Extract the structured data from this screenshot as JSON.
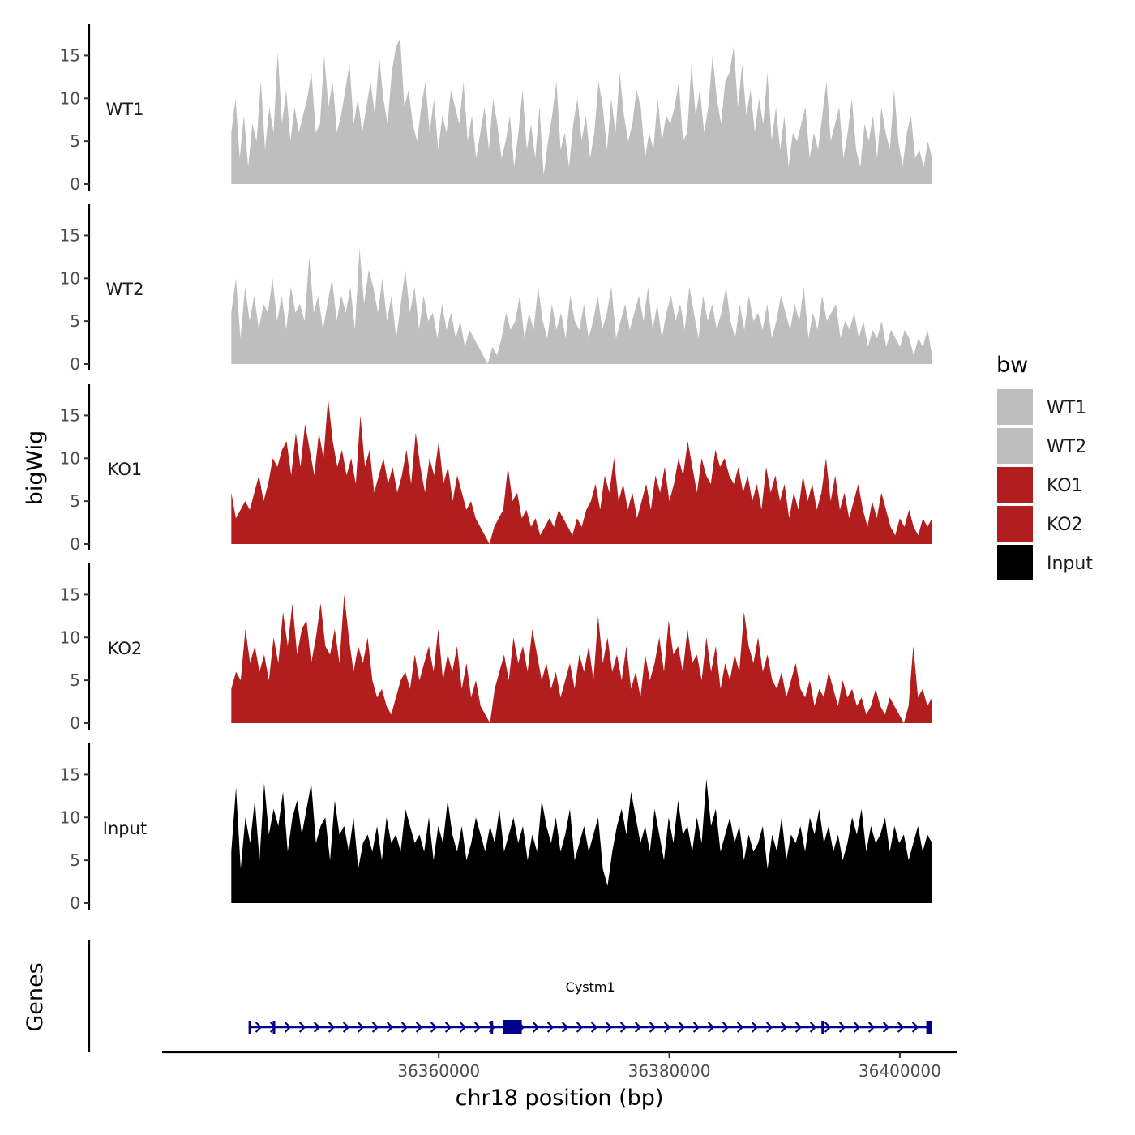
{
  "chart_data": {
    "type": "area",
    "chromosome": "chr18",
    "ylabel": "bigWig",
    "xlabel": "chr18 position (bp)",
    "x_range": [
      36342000,
      36402800
    ],
    "x_axis_range": [
      36336000,
      36405000
    ],
    "x_ticks": [
      36360000,
      36380000,
      36400000
    ],
    "x_tick_labels": [
      "36360000",
      "36380000",
      "36400000"
    ],
    "y_range": [
      0,
      17.5
    ],
    "y_ticks": [
      0,
      5,
      10,
      15
    ],
    "y_tick_labels": [
      "0",
      "5",
      "10",
      "15"
    ],
    "legend": {
      "title": "bw",
      "entries": [
        {
          "label": "WT1",
          "color": "#bebebe"
        },
        {
          "label": "WT2",
          "color": "#bebebe"
        },
        {
          "label": "KO1",
          "color": "#b21e1e"
        },
        {
          "label": "KO2",
          "color": "#b21e1e"
        },
        {
          "label": "Input",
          "color": "#000000"
        }
      ]
    },
    "series": [
      {
        "name": "WT1",
        "color": "#bebebe",
        "values": [
          6,
          10,
          3,
          8,
          2,
          7,
          5,
          12,
          4,
          9,
          6,
          15.5,
          7,
          11,
          5,
          9,
          6,
          8,
          10,
          13,
          6,
          7,
          15,
          9,
          12,
          6,
          8,
          11,
          14,
          7,
          10,
          6,
          9,
          12,
          8,
          15,
          10,
          7,
          13,
          16,
          17,
          9,
          11,
          7,
          5,
          9,
          12,
          6,
          10,
          4,
          8,
          6,
          11,
          9,
          7,
          12,
          5,
          8,
          3,
          6,
          9,
          4,
          10,
          7,
          3,
          5,
          8,
          2,
          6,
          11,
          4,
          7,
          3,
          9,
          1,
          5,
          8,
          12,
          4,
          6,
          2,
          7,
          10,
          5,
          8,
          3,
          6,
          12,
          9,
          4,
          10,
          6,
          13,
          8,
          5,
          7,
          11,
          9,
          3,
          6,
          4,
          10,
          5,
          8,
          7,
          9,
          12,
          5,
          6,
          14,
          8,
          11,
          6,
          9,
          15,
          10,
          7,
          12,
          13,
          16,
          9,
          14,
          8,
          11,
          6,
          10,
          7,
          13,
          5,
          9,
          4,
          8,
          2,
          6,
          5,
          7,
          9,
          3,
          6,
          4,
          8,
          12,
          5,
          7,
          9,
          3,
          6,
          10,
          4,
          2,
          7,
          5,
          8,
          3,
          9,
          6,
          4,
          11,
          5,
          2,
          6,
          8,
          3,
          4,
          2,
          5,
          3
        ]
      },
      {
        "name": "WT2",
        "color": "#bebebe",
        "values": [
          6,
          10,
          3,
          9,
          5,
          8,
          4,
          7,
          6,
          10,
          5,
          8,
          4,
          9,
          6,
          7,
          5,
          12.5,
          6,
          8,
          4,
          7,
          10,
          5,
          8,
          6,
          9,
          4,
          13.5,
          7,
          11,
          9,
          6,
          10,
          5,
          8,
          3,
          7,
          11,
          6,
          9,
          4,
          8,
          5,
          6,
          3,
          7,
          4,
          6,
          3,
          5,
          2,
          4,
          3,
          2,
          1,
          0,
          2,
          1,
          3,
          6,
          4,
          5,
          8,
          3,
          6,
          4,
          9,
          5,
          3,
          7,
          4,
          6,
          3,
          8,
          5,
          4,
          7,
          3,
          5,
          8,
          4,
          6,
          9,
          3,
          5,
          7,
          4,
          6,
          8,
          5,
          9,
          4,
          7,
          3,
          6,
          8,
          5,
          7,
          4,
          9,
          6,
          3,
          8,
          5,
          7,
          4,
          6,
          9,
          5,
          3,
          7,
          4,
          8,
          5,
          6,
          4,
          7,
          3,
          5,
          8,
          6,
          4,
          7,
          5,
          9,
          3,
          6,
          4,
          8,
          5,
          6,
          7,
          3,
          5,
          4,
          6,
          3,
          5,
          2,
          4,
          3,
          5,
          2,
          4,
          3,
          2,
          4,
          3,
          1,
          3,
          2,
          4,
          1
        ]
      },
      {
        "name": "KO1",
        "color": "#b21e1e",
        "values": [
          6,
          3,
          4,
          5,
          4,
          6,
          8,
          5,
          7,
          10,
          9,
          11,
          12,
          8,
          13,
          9,
          14,
          11,
          8,
          13,
          10,
          17,
          12,
          9,
          11,
          8,
          10,
          7,
          15,
          9,
          11,
          6,
          8,
          10,
          7,
          9,
          6,
          8,
          11,
          7,
          13,
          9,
          6,
          10,
          8,
          12,
          7,
          9,
          5,
          8,
          6,
          4,
          5,
          3,
          2,
          1,
          0,
          2,
          3,
          4,
          9,
          5,
          6,
          3,
          4,
          2,
          3,
          1,
          2,
          3,
          2,
          4,
          3,
          2,
          1,
          3,
          2,
          4,
          5,
          7,
          4,
          8,
          6,
          10,
          5,
          7,
          4,
          6,
          3,
          5,
          7,
          4,
          8,
          6,
          9,
          5,
          7,
          10,
          8,
          12,
          9,
          6,
          10,
          8,
          7,
          11,
          9,
          10,
          8,
          7,
          9,
          6,
          8,
          5,
          7,
          4,
          9,
          6,
          8,
          5,
          7,
          3,
          6,
          4,
          8,
          5,
          7,
          4,
          6,
          10,
          5,
          8,
          4,
          6,
          3,
          5,
          7,
          4,
          2,
          5,
          3,
          6,
          4,
          2,
          1,
          3,
          2,
          4,
          2,
          1,
          3,
          2,
          3
        ]
      },
      {
        "name": "KO2",
        "color": "#b21e1e",
        "values": [
          4,
          6,
          5,
          11,
          7,
          9,
          6,
          8,
          5,
          10,
          7,
          13,
          9,
          14,
          8,
          11,
          12,
          7,
          10,
          14,
          9,
          8,
          11,
          7,
          15,
          10,
          6,
          9,
          7,
          10,
          5,
          3,
          4,
          2,
          1,
          3,
          5,
          6,
          4,
          8,
          5,
          7,
          9,
          6,
          11,
          5,
          8,
          6,
          9,
          4,
          7,
          3,
          5,
          2,
          1,
          0,
          4,
          6,
          8,
          5,
          10,
          7,
          9,
          6,
          11,
          8,
          5,
          7,
          4,
          6,
          3,
          5,
          7,
          4,
          8,
          6,
          9,
          5,
          12.5,
          7,
          10,
          6,
          8,
          5,
          9,
          4,
          6,
          3,
          8,
          5,
          7,
          10,
          6,
          12,
          8,
          9,
          6,
          11,
          7,
          8,
          5,
          10,
          6,
          9,
          4,
          7,
          5,
          8,
          6,
          13,
          9,
          7,
          10,
          6,
          8,
          5,
          4,
          6,
          3,
          5,
          7,
          4,
          3,
          5,
          2,
          4,
          3,
          6,
          4,
          2,
          5,
          3,
          4,
          2,
          3,
          1,
          2,
          4,
          2,
          1,
          3,
          2,
          1,
          0,
          2,
          9,
          3,
          4,
          2,
          3
        ]
      },
      {
        "name": "Input",
        "color": "#000000",
        "values": [
          6,
          13.5,
          4,
          10,
          7,
          12,
          5,
          14,
          8,
          11,
          9,
          13,
          6,
          10,
          12,
          8,
          11,
          14,
          7,
          9,
          10,
          5,
          12,
          8,
          9,
          6,
          10,
          4,
          7,
          8,
          6,
          9,
          5,
          10,
          7,
          8,
          6,
          11,
          9,
          7,
          8,
          6,
          10,
          5,
          9,
          7,
          12,
          8,
          6,
          9,
          5,
          7,
          10,
          8,
          6,
          9,
          7,
          11,
          6,
          8,
          10,
          7,
          9,
          5,
          8,
          6,
          12,
          9,
          7,
          10,
          6,
          8,
          11,
          5,
          7,
          9,
          6,
          8,
          10,
          4,
          2,
          6,
          9,
          11,
          8,
          13,
          10,
          7,
          9,
          6,
          11,
          8,
          5,
          10,
          7,
          12,
          8,
          9,
          6,
          10,
          7,
          14.5,
          9,
          11,
          6,
          8,
          10,
          7,
          9,
          5,
          8,
          6,
          7,
          9,
          4,
          8,
          6,
          10,
          5,
          8,
          7,
          9,
          6,
          10,
          8,
          11,
          7,
          9,
          6,
          8,
          5,
          7,
          10,
          8,
          11,
          6,
          9,
          7,
          8,
          10,
          6,
          9,
          7,
          8,
          5,
          7,
          9,
          6,
          8,
          7
        ]
      }
    ],
    "genes": [
      {
        "name": "Cystm1",
        "start": 36343500,
        "end": 36402800,
        "strand": "+",
        "exons": [
          [
            36343500,
            36343600
          ],
          [
            36345600,
            36345700
          ],
          [
            36364500,
            36364600
          ],
          [
            36365600,
            36367200
          ],
          [
            36393200,
            36393300
          ],
          [
            36402300,
            36402800
          ]
        ]
      }
    ],
    "gene_track_label": "Genes",
    "gene_color": "#00008b"
  }
}
